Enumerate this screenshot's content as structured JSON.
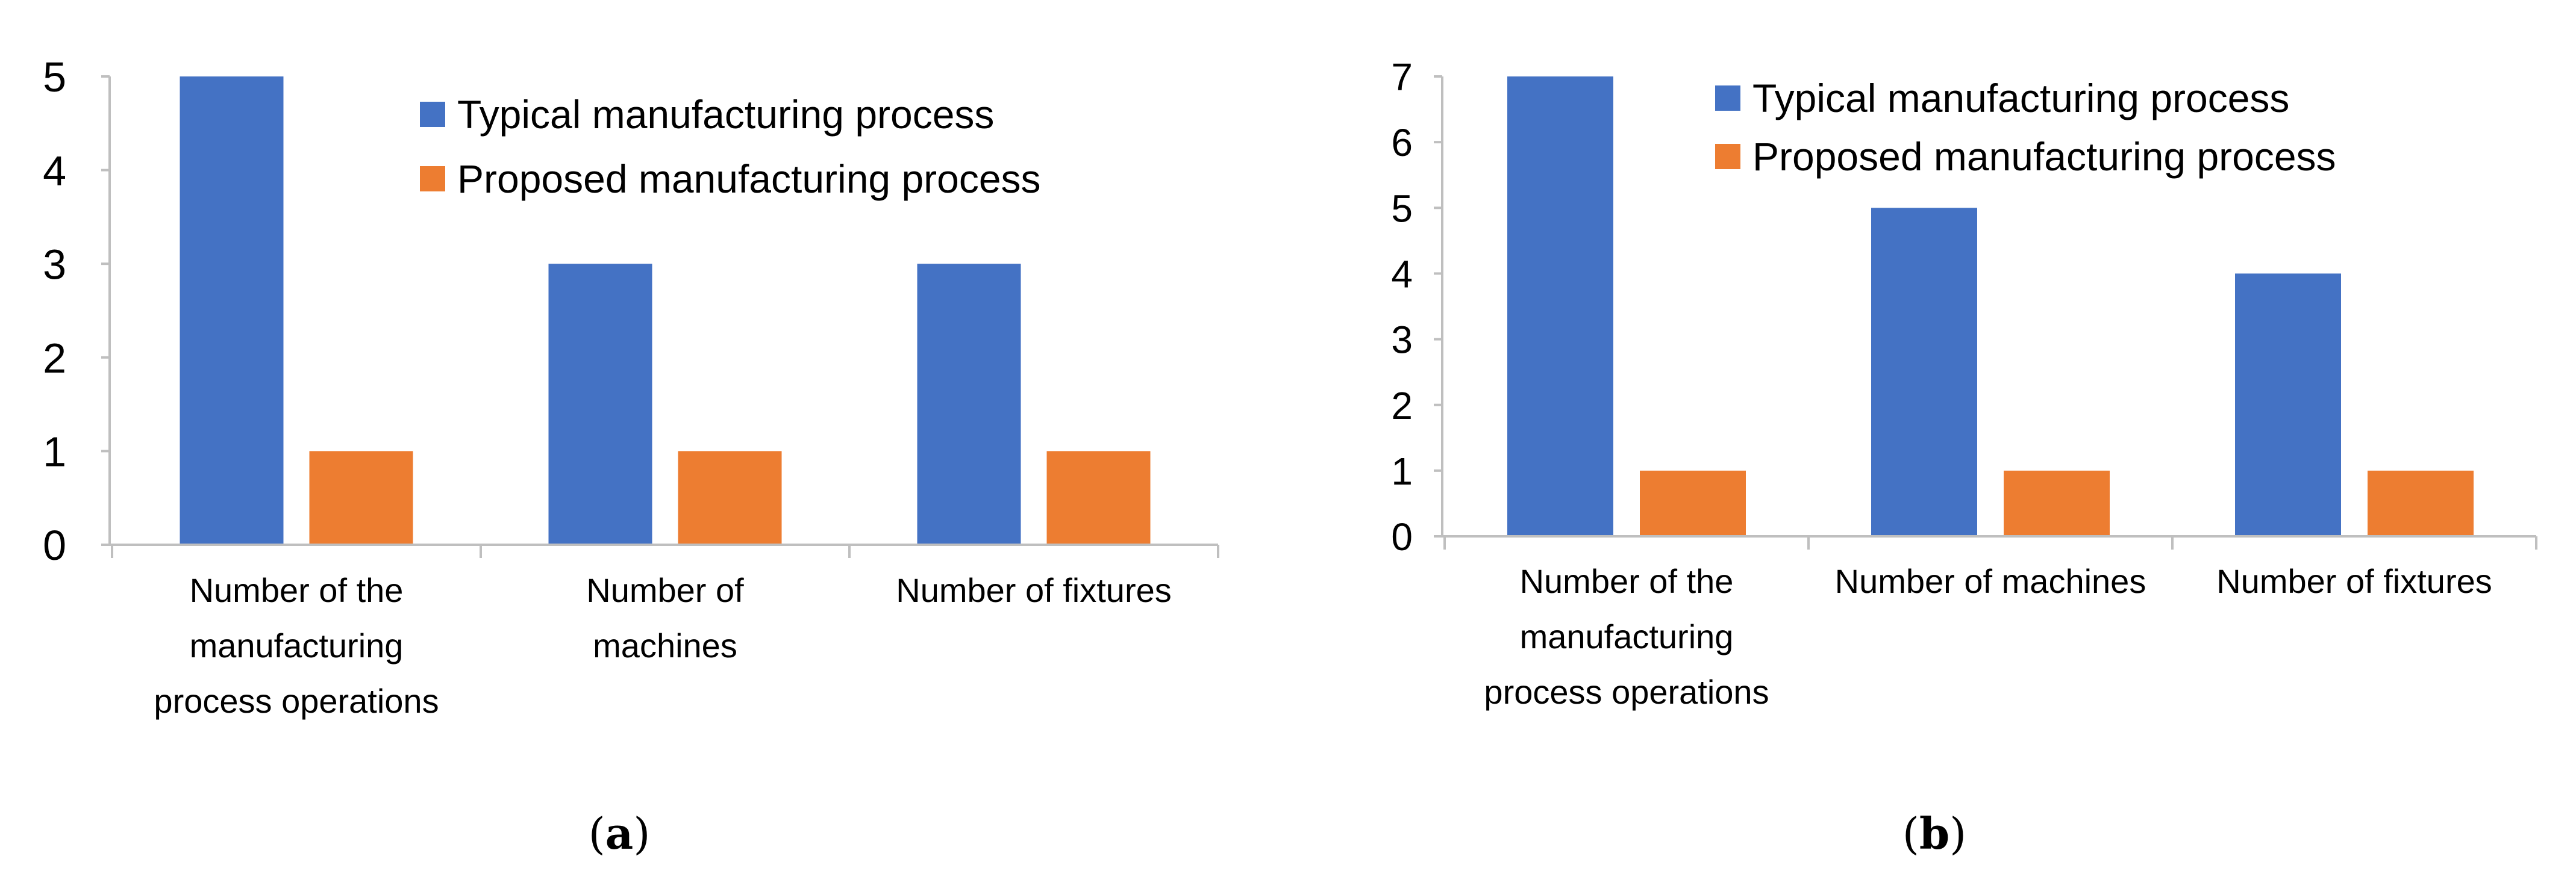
{
  "chart_data": [
    {
      "type": "bar",
      "categories": [
        [
          "Number of the",
          "manufacturing",
          "process operations"
        ],
        [
          "Number of",
          "machines"
        ],
        [
          "Number of fixtures"
        ]
      ],
      "series": [
        {
          "name": "Typical manufacturing process",
          "values": [
            5,
            3,
            3
          ],
          "color": "#4472C4"
        },
        {
          "name": "Proposed manufacturing process",
          "values": [
            1,
            1,
            1
          ],
          "color": "#ED7D31"
        }
      ],
      "yticks": [
        "0",
        "1",
        "2",
        "3",
        "4",
        "5"
      ],
      "ylim": [
        0,
        5
      ],
      "grid": false,
      "legend": "top-right",
      "caption": "a"
    },
    {
      "type": "bar",
      "categories": [
        [
          "Number of the",
          "manufacturing",
          "process operations"
        ],
        [
          "Number of machines"
        ],
        [
          "Number of fixtures"
        ]
      ],
      "series": [
        {
          "name": "Typical manufacturing process",
          "values": [
            7,
            5,
            4
          ],
          "color": "#4472C4"
        },
        {
          "name": "Proposed manufacturing process",
          "values": [
            1,
            1,
            1
          ],
          "color": "#ED7D31"
        }
      ],
      "yticks": [
        "0",
        "1",
        "2",
        "3",
        "4",
        "5",
        "6",
        "7"
      ],
      "ylim": [
        0,
        7
      ],
      "grid": false,
      "legend": "top-right",
      "caption": "b"
    }
  ]
}
